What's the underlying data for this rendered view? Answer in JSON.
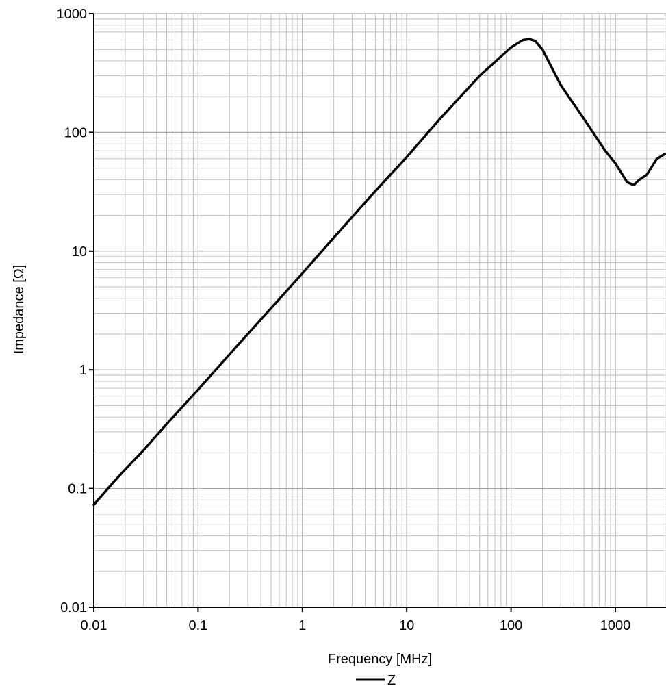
{
  "chart_data": {
    "type": "line",
    "xlabel": "Frequency [MHz]",
    "ylabel": "Impedance [Ω]",
    "x_scale": "log",
    "y_scale": "log",
    "xlim": [
      0.01,
      3000
    ],
    "ylim": [
      0.01,
      1000
    ],
    "x_ticks": [
      "0.01",
      "0.1",
      "1",
      "10",
      "100",
      "1000"
    ],
    "y_ticks": [
      "0.01",
      "0.1",
      "1",
      "10",
      "100",
      "1000"
    ],
    "grid": true,
    "legend_position": "bottom",
    "series": [
      {
        "name": "Z",
        "color": "#000000",
        "x": [
          0.01,
          0.015,
          0.02,
          0.03,
          0.05,
          0.1,
          0.2,
          0.5,
          1,
          2,
          5,
          10,
          20,
          50,
          100,
          130,
          150,
          170,
          200,
          300,
          500,
          800,
          1000,
          1300,
          1500,
          1700,
          2000,
          2500,
          3000
        ],
        "y": [
          0.073,
          0.11,
          0.145,
          0.21,
          0.35,
          0.68,
          1.35,
          3.3,
          6.5,
          13,
          32,
          62,
          125,
          300,
          520,
          600,
          610,
          590,
          500,
          250,
          130,
          70,
          55,
          38,
          36,
          40,
          44,
          60,
          66
        ]
      }
    ]
  }
}
